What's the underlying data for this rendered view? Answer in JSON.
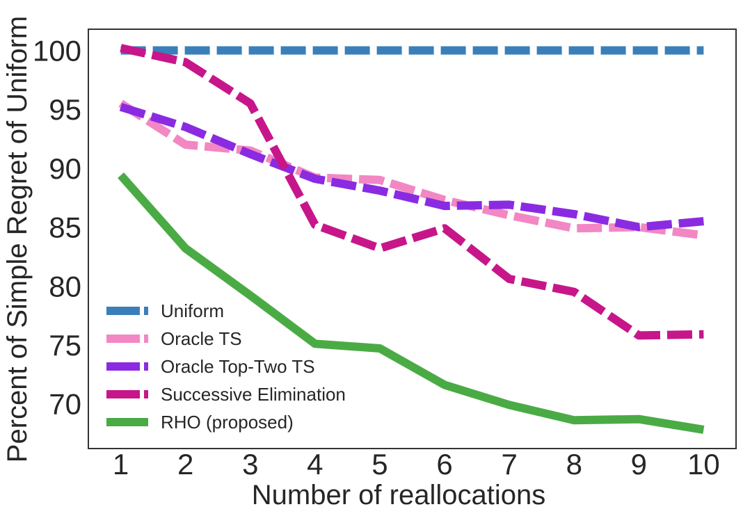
{
  "chart_data": {
    "type": "line",
    "title": "",
    "xlabel": "Number of reallocations",
    "ylabel": "Percent of Simple Regret of Uniform",
    "x": [
      1,
      2,
      3,
      4,
      5,
      6,
      7,
      8,
      9,
      10
    ],
    "xlim": [
      0.5,
      10.5
    ],
    "ylim": [
      66.2,
      101.8
    ],
    "xticks": [
      "1",
      "2",
      "3",
      "4",
      "5",
      "6",
      "7",
      "8",
      "9",
      "10"
    ],
    "yticks": [
      "70",
      "75",
      "80",
      "85",
      "90",
      "95",
      "100"
    ],
    "grid": false,
    "legend_position": "lower-left",
    "series": [
      {
        "name": "Uniform",
        "color": "#3a7fba",
        "style": "dashed",
        "values": [
          100,
          100,
          100,
          100,
          100,
          100,
          100,
          100,
          100,
          100
        ]
      },
      {
        "name": "Oracle TS",
        "color": "#f287c3",
        "style": "dashed",
        "values": [
          95.5,
          92.0,
          91.5,
          89.2,
          89.0,
          87.3,
          86.0,
          84.9,
          85.0,
          84.3
        ]
      },
      {
        "name": "Oracle Top-Two TS",
        "color": "#8a2be2",
        "style": "dashed",
        "values": [
          95.2,
          93.5,
          91.2,
          89.1,
          88.1,
          86.8,
          86.9,
          86.1,
          85.0,
          85.5
        ]
      },
      {
        "name": "Successive Elimination",
        "color": "#c7168a",
        "style": "dashed",
        "values": [
          100.2,
          99.0,
          95.5,
          85.2,
          83.2,
          84.9,
          80.6,
          79.5,
          75.8,
          75.9
        ]
      },
      {
        "name": "RHO (proposed)",
        "color": "#4aab45",
        "style": "solid",
        "values": [
          89.4,
          83.2,
          79.2,
          75.1,
          74.7,
          71.6,
          69.9,
          68.6,
          68.7,
          67.8
        ]
      }
    ]
  }
}
